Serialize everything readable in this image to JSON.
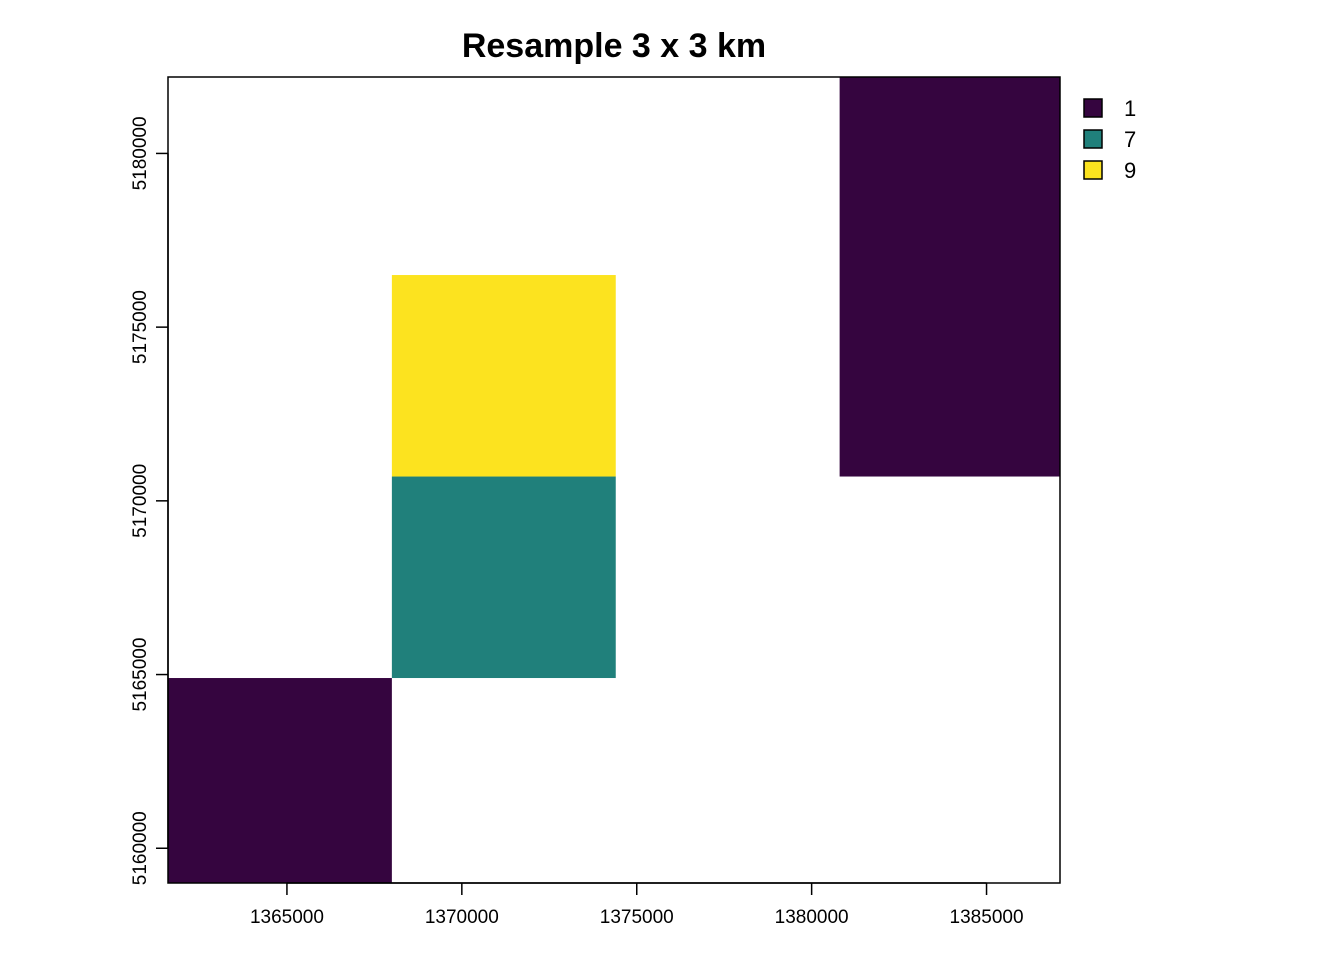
{
  "chart_data": {
    "type": "heatmap",
    "title": "Resample 3 x 3 km",
    "xlabel": "",
    "ylabel": "",
    "xlim": [
      1361600,
      1387100
    ],
    "ylim": [
      5159000,
      5182200
    ],
    "x_ticks": [
      1365000,
      1370000,
      1375000,
      1380000,
      1385000
    ],
    "y_ticks": [
      5160000,
      5165000,
      5170000,
      5175000,
      5180000
    ],
    "grid": false,
    "legend": {
      "position": "top-right",
      "entries": [
        {
          "label": "1",
          "value": 1,
          "color": "#35053f"
        },
        {
          "label": "7",
          "value": 7,
          "color": "#20807b"
        },
        {
          "label": "9",
          "value": 9,
          "color": "#fce31f"
        }
      ]
    },
    "cells": [
      {
        "value": 1,
        "x": [
          1361600,
          1368000
        ],
        "y": [
          5159000,
          5164900
        ]
      },
      {
        "value": 7,
        "x": [
          1368000,
          1374400
        ],
        "y": [
          5164900,
          5170700
        ]
      },
      {
        "value": 9,
        "x": [
          1368000,
          1374400
        ],
        "y": [
          5170700,
          5176500
        ]
      },
      {
        "value": 1,
        "x": [
          1380800,
          1387100
        ],
        "y": [
          5170700,
          5182200
        ]
      }
    ]
  }
}
